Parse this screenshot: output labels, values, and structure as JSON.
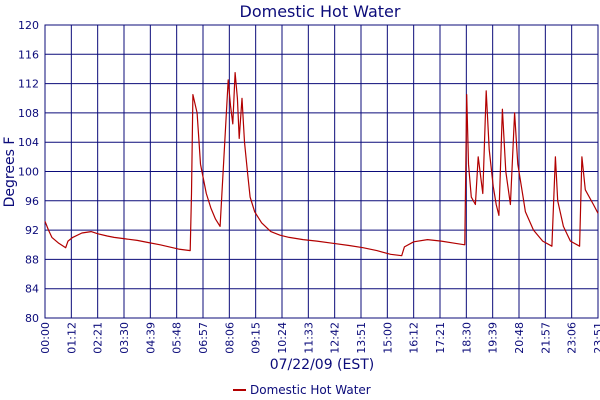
{
  "chart_data": {
    "type": "line",
    "title": "Domestic Hot Water",
    "xlabel": "07/22/09 (EST)",
    "ylabel": "Degrees F",
    "ylim": [
      80,
      120
    ],
    "yticks": [
      80,
      84,
      88,
      92,
      96,
      100,
      104,
      108,
      112,
      116,
      120
    ],
    "xlim_hours": [
      0,
      24
    ],
    "xticks": [
      "00:00",
      "01:12",
      "02:21",
      "03:30",
      "04:39",
      "05:48",
      "06:57",
      "08:06",
      "09:15",
      "10:24",
      "11:33",
      "12:42",
      "13:51",
      "15:00",
      "16:12",
      "17:21",
      "18:30",
      "19:39",
      "20:48",
      "21:57",
      "23:06",
      "23:51"
    ],
    "grid": true,
    "legend": "bottom-center",
    "colors": {
      "series": "#b20000",
      "grid": "#0b0b7a",
      "text": "#0b0b7a"
    },
    "series": [
      {
        "name": "Domestic Hot Water",
        "x": [
          0.0,
          0.15,
          0.3,
          0.6,
          0.9,
          1.0,
          1.2,
          1.6,
          2.0,
          2.3,
          2.7,
          3.0,
          3.5,
          4.0,
          4.5,
          5.0,
          5.4,
          5.8,
          6.3,
          6.36,
          6.42,
          6.6,
          6.75,
          7.0,
          7.2,
          7.4,
          7.6,
          7.95,
          8.05,
          8.15,
          8.25,
          8.35,
          8.43,
          8.55,
          8.66,
          8.8,
          8.9,
          9.1,
          9.4,
          9.8,
          10.2,
          10.6,
          11.2,
          11.8,
          12.5,
          13.2,
          13.8,
          14.4,
          15.0,
          15.48,
          15.6,
          16.0,
          16.6,
          17.2,
          17.8,
          18.22,
          18.3,
          18.38,
          18.5,
          18.68,
          18.8,
          19.0,
          19.15,
          19.28,
          19.45,
          19.58,
          19.7,
          19.85,
          20.0,
          20.2,
          20.38,
          20.52,
          20.75,
          20.85,
          21.2,
          21.6,
          22.0,
          22.15,
          22.25,
          22.5,
          22.8,
          23.2,
          23.3,
          23.45,
          23.8,
          24.0
        ],
        "y": [
          93.2,
          92.0,
          91.0,
          90.2,
          89.6,
          90.5,
          91.0,
          91.6,
          91.8,
          91.5,
          91.2,
          91.0,
          90.8,
          90.6,
          90.3,
          90.0,
          89.7,
          89.4,
          89.2,
          97.0,
          110.5,
          108.0,
          101.0,
          97.0,
          95.0,
          93.5,
          92.5,
          112.5,
          109.0,
          106.5,
          113.5,
          110.0,
          104.5,
          110.0,
          104.0,
          99.5,
          96.5,
          94.5,
          93.0,
          91.8,
          91.3,
          91.0,
          90.7,
          90.5,
          90.2,
          89.9,
          89.6,
          89.2,
          88.7,
          88.5,
          89.7,
          90.4,
          90.7,
          90.5,
          90.2,
          90.0,
          110.5,
          101.0,
          96.5,
          95.5,
          102.0,
          97.0,
          111.0,
          103.0,
          98.0,
          95.5,
          94.0,
          108.5,
          100.0,
          95.5,
          108.0,
          101.0,
          96.5,
          94.5,
          92.0,
          90.5,
          89.8,
          102.0,
          96.0,
          92.5,
          90.5,
          89.8,
          102.0,
          97.5,
          95.5,
          94.3
        ]
      }
    ]
  }
}
